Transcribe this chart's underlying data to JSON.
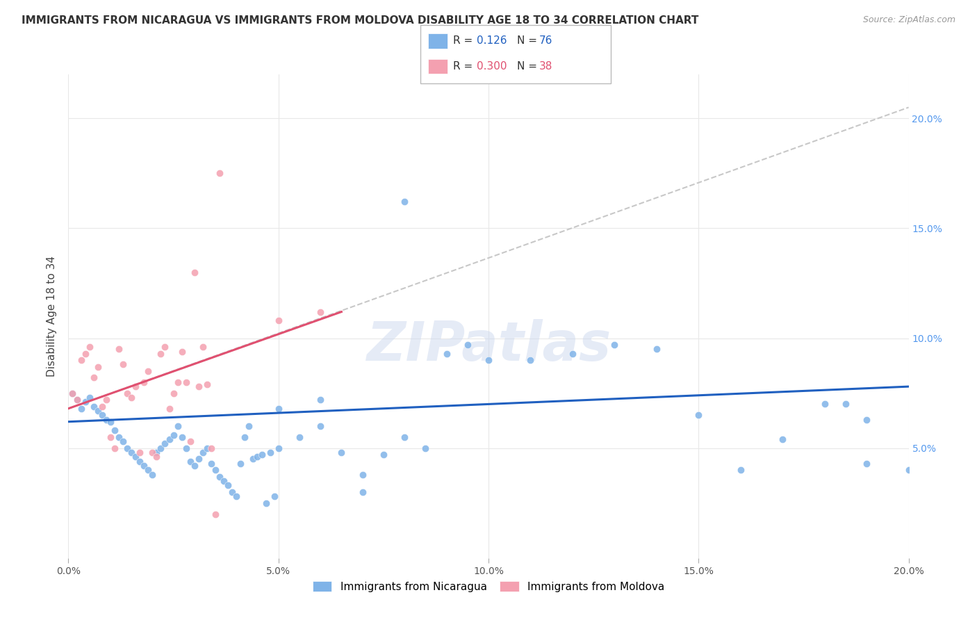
{
  "title": "IMMIGRANTS FROM NICARAGUA VS IMMIGRANTS FROM MOLDOVA DISABILITY AGE 18 TO 34 CORRELATION CHART",
  "source": "Source: ZipAtlas.com",
  "ylabel": "Disability Age 18 to 34",
  "ylabel_right_ticks": [
    "5.0%",
    "10.0%",
    "15.0%",
    "20.0%"
  ],
  "ylabel_right_values": [
    0.05,
    0.1,
    0.15,
    0.2
  ],
  "watermark": "ZIPatlas",
  "nicaragua_color": "#7fb3e8",
  "moldova_color": "#f4a0b0",
  "nicaragua_line_color": "#2060c0",
  "moldova_line_color": "#e05070",
  "dashed_line_color": "#c8c8c8",
  "background_color": "#ffffff",
  "grid_color": "#e8e8e8",
  "nic_R": "0.126",
  "nic_N": "76",
  "mol_R": "0.300",
  "mol_N": "38",
  "nicaragua_scatter_x": [
    0.001,
    0.002,
    0.003,
    0.004,
    0.005,
    0.006,
    0.007,
    0.008,
    0.009,
    0.01,
    0.011,
    0.012,
    0.013,
    0.014,
    0.015,
    0.016,
    0.017,
    0.018,
    0.019,
    0.02,
    0.021,
    0.022,
    0.023,
    0.024,
    0.025,
    0.026,
    0.027,
    0.028,
    0.029,
    0.03,
    0.031,
    0.032,
    0.033,
    0.034,
    0.035,
    0.036,
    0.037,
    0.038,
    0.039,
    0.04,
    0.041,
    0.042,
    0.043,
    0.044,
    0.045,
    0.046,
    0.047,
    0.048,
    0.049,
    0.05,
    0.055,
    0.06,
    0.065,
    0.07,
    0.075,
    0.08,
    0.085,
    0.09,
    0.095,
    0.1,
    0.11,
    0.12,
    0.13,
    0.14,
    0.15,
    0.16,
    0.17,
    0.18,
    0.185,
    0.05,
    0.06,
    0.07,
    0.08,
    0.19,
    0.2,
    0.19
  ],
  "nicaragua_scatter_y": [
    0.075,
    0.072,
    0.068,
    0.071,
    0.073,
    0.069,
    0.067,
    0.065,
    0.063,
    0.062,
    0.058,
    0.055,
    0.053,
    0.05,
    0.048,
    0.046,
    0.044,
    0.042,
    0.04,
    0.038,
    0.048,
    0.05,
    0.052,
    0.054,
    0.056,
    0.06,
    0.055,
    0.05,
    0.044,
    0.042,
    0.045,
    0.048,
    0.05,
    0.043,
    0.04,
    0.037,
    0.035,
    0.033,
    0.03,
    0.028,
    0.043,
    0.055,
    0.06,
    0.045,
    0.046,
    0.047,
    0.025,
    0.048,
    0.028,
    0.05,
    0.055,
    0.06,
    0.048,
    0.03,
    0.047,
    0.055,
    0.05,
    0.093,
    0.097,
    0.09,
    0.09,
    0.093,
    0.097,
    0.095,
    0.065,
    0.04,
    0.054,
    0.07,
    0.07,
    0.068,
    0.072,
    0.038,
    0.162,
    0.063,
    0.04,
    0.043
  ],
  "moldova_scatter_x": [
    0.001,
    0.002,
    0.003,
    0.004,
    0.005,
    0.006,
    0.007,
    0.008,
    0.009,
    0.01,
    0.011,
    0.012,
    0.013,
    0.014,
    0.015,
    0.016,
    0.017,
    0.018,
    0.019,
    0.02,
    0.021,
    0.022,
    0.023,
    0.024,
    0.025,
    0.026,
    0.027,
    0.028,
    0.029,
    0.03,
    0.031,
    0.032,
    0.033,
    0.034,
    0.035,
    0.036,
    0.05,
    0.06
  ],
  "moldova_scatter_y": [
    0.075,
    0.072,
    0.09,
    0.093,
    0.096,
    0.082,
    0.087,
    0.069,
    0.072,
    0.055,
    0.05,
    0.095,
    0.088,
    0.075,
    0.073,
    0.078,
    0.048,
    0.08,
    0.085,
    0.048,
    0.046,
    0.093,
    0.096,
    0.068,
    0.075,
    0.08,
    0.094,
    0.08,
    0.053,
    0.13,
    0.078,
    0.096,
    0.079,
    0.05,
    0.02,
    0.175,
    0.108,
    0.112
  ],
  "nicaragua_line_x": [
    0.0,
    0.2
  ],
  "nicaragua_line_y": [
    0.062,
    0.078
  ],
  "moldova_line_x": [
    0.0,
    0.065
  ],
  "moldova_line_y": [
    0.068,
    0.112
  ],
  "dashed_line_x": [
    0.0,
    0.2
  ],
  "dashed_line_y": [
    0.068,
    0.205
  ],
  "xlim": [
    0.0,
    0.2
  ],
  "ylim": [
    0.0,
    0.22
  ],
  "xtick_positions": [
    0.0,
    0.05,
    0.1,
    0.15,
    0.2
  ],
  "xtick_labels": [
    "0.0%",
    "5.0%",
    "10.0%",
    "15.0%",
    "20.0%"
  ]
}
